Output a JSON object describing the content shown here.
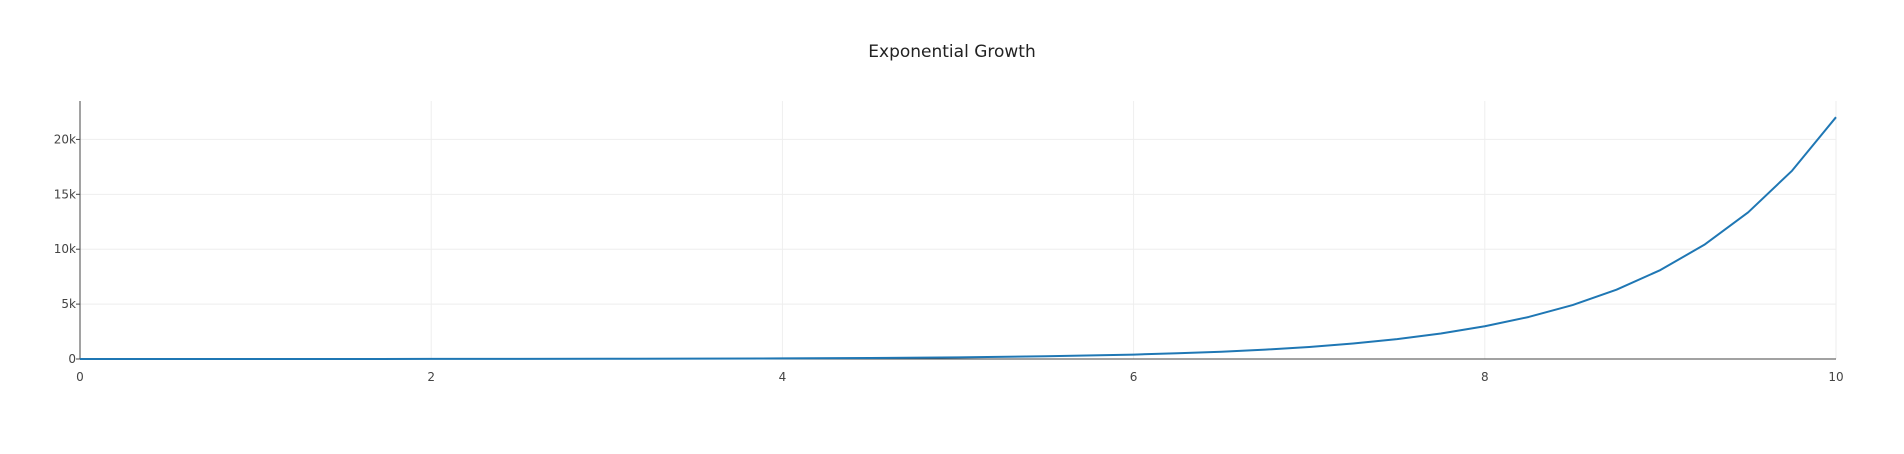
{
  "chart_data": {
    "type": "line",
    "title": "Exponential Growth",
    "xlabel": "",
    "ylabel": "",
    "xlim": [
      0,
      10
    ],
    "ylim": [
      0,
      23500
    ],
    "x_ticks": [
      0,
      2,
      4,
      6,
      8,
      10
    ],
    "x_tick_labels": [
      "0",
      "2",
      "4",
      "6",
      "8",
      "10"
    ],
    "y_ticks": [
      0,
      5000,
      10000,
      15000,
      20000
    ],
    "y_tick_labels": [
      "0",
      "5k",
      "10k",
      "15k",
      "20k"
    ],
    "grid": true,
    "legend": "none",
    "line_color": "#1f77b4",
    "series": [
      {
        "x": [
          0,
          0.5,
          1,
          1.5,
          2,
          2.5,
          3,
          3.5,
          4,
          4.5,
          5,
          5.5,
          6,
          6.25,
          6.5,
          6.75,
          7,
          7.25,
          7.5,
          7.75,
          8,
          8.25,
          8.5,
          8.75,
          9,
          9.25,
          9.5,
          9.75,
          10
        ],
        "y": [
          1,
          2,
          3,
          4,
          7,
          12,
          20,
          33,
          55,
          90,
          148,
          245,
          403,
          518,
          665,
          854,
          1097,
          1408,
          1808,
          2322,
          2981,
          3828,
          4915,
          6311,
          8103,
          10405,
          13360,
          17154,
          22026
        ]
      }
    ]
  }
}
